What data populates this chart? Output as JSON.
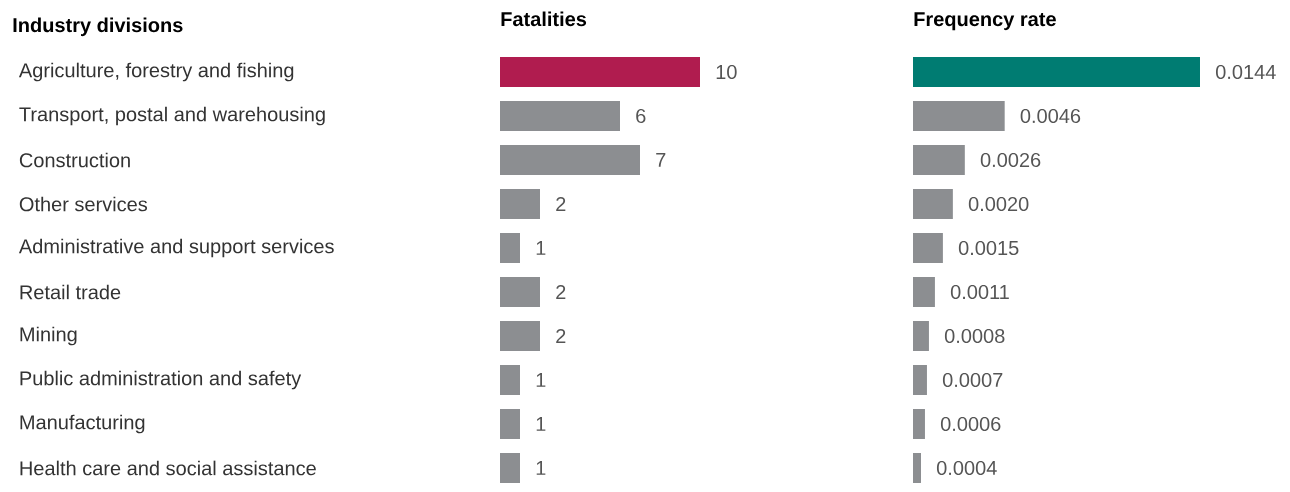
{
  "chart_data": [
    {
      "type": "bar",
      "orientation": "horizontal",
      "title": "Fatalities",
      "ylabel": "Industry divisions",
      "categories": [
        "Agriculture, forestry and fishing",
        "Transport, postal and warehousing",
        "Construction",
        "Other services",
        "Administrative and support services",
        "Retail trade",
        "Mining",
        "Public administration and safety",
        "Manufacturing",
        "Health care and social assistance"
      ],
      "values": [
        10,
        6,
        7,
        2,
        1,
        2,
        2,
        1,
        1,
        1
      ],
      "colors": [
        "#b01c4f",
        "#8c8e91",
        "#8c8e91",
        "#8c8e91",
        "#8c8e91",
        "#8c8e91",
        "#8c8e91",
        "#8c8e91",
        "#8c8e91",
        "#8c8e91"
      ],
      "data_labels": true,
      "tick_labels": "y"
    },
    {
      "type": "bar",
      "orientation": "horizontal",
      "title": "Frequency rate",
      "categories": [
        null,
        null,
        null,
        null,
        null,
        null,
        null,
        null,
        null,
        null
      ],
      "values": [
        0.0144,
        0.0046,
        0.0026,
        0.002,
        0.0015,
        0.0011,
        0.0008,
        0.0007,
        0.0006,
        0.0004
      ],
      "colors": [
        "#007c72",
        "#8c8e91",
        "#8c8e91",
        "#8c8e91",
        "#8c8e91",
        "#8c8e91",
        "#8c8e91",
        "#8c8e91",
        "#8c8e91",
        "#8c8e91"
      ],
      "value_labels": [
        "0.0144",
        "0.0046",
        "0.0026",
        "0.0020",
        "0.0015",
        "0.0011",
        "0.0008",
        "0.0007",
        "0.0006",
        "0.0004"
      ]
    }
  ]
}
